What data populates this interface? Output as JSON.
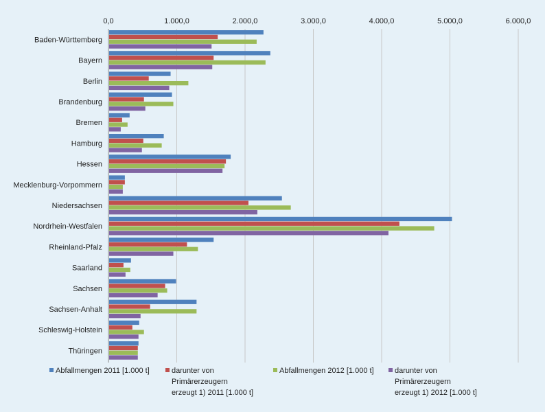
{
  "chart_data": {
    "type": "bar",
    "orientation": "horizontal",
    "xlim": [
      0,
      6000
    ],
    "x_ticks": [
      "0,0",
      "1.000,0",
      "2.000,0",
      "3.000,0",
      "4.000,0",
      "5.000,0",
      "6.000,0"
    ],
    "x_tick_values": [
      0,
      1000,
      2000,
      3000,
      4000,
      5000,
      6000
    ],
    "grid": true,
    "legend_position": "bottom",
    "categories": [
      "Baden-Württemberg",
      "Bayern",
      "Berlin",
      "Brandenburg",
      "Bremen",
      "Hamburg",
      "Hessen",
      "Mecklenburg-Vorpommern",
      "Niedersachsen",
      "Nordrhein-Westfalen",
      "Rheinland-Pfalz",
      "Saarland",
      "Sachsen",
      "Sachsen-Anhalt",
      "Schleswig-Holstein",
      "Thüringen"
    ],
    "series": [
      {
        "name": "Abfallmengen 2011 [1.000 t]",
        "color": "#4f81bd",
        "values": [
          2270,
          2370,
          910,
          930,
          310,
          810,
          1790,
          240,
          2540,
          5030,
          1540,
          330,
          990,
          1290,
          450,
          440
        ]
      },
      {
        "name": "darunter von Primärerzeugern erzeugt 1) 2011 [1.000 t]",
        "legend_lines": [
          "darunter von",
          "Primärerzeugern",
          "erzeugt 1) 2011 [1.000 t]"
        ],
        "color": "#c0504d",
        "values": [
          1600,
          1540,
          590,
          520,
          200,
          510,
          1720,
          240,
          2050,
          4260,
          1150,
          220,
          830,
          610,
          350,
          430
        ]
      },
      {
        "name": "Abfallmengen 2012 [1.000 t]",
        "color": "#9bbb59",
        "values": [
          2170,
          2300,
          1170,
          950,
          280,
          780,
          1700,
          210,
          2670,
          4770,
          1310,
          320,
          860,
          1290,
          520,
          430
        ]
      },
      {
        "name": "darunter von Primärerzeugern erzeugt 1) 2012 [1.000 t]",
        "legend_lines": [
          "darunter von",
          "Primärerzeugern",
          "erzeugt 1)  2012 [1.000 t]"
        ],
        "color": "#8064a2",
        "values": [
          1510,
          1520,
          890,
          540,
          180,
          490,
          1670,
          210,
          2180,
          4100,
          950,
          250,
          720,
          470,
          440,
          430
        ]
      }
    ]
  }
}
